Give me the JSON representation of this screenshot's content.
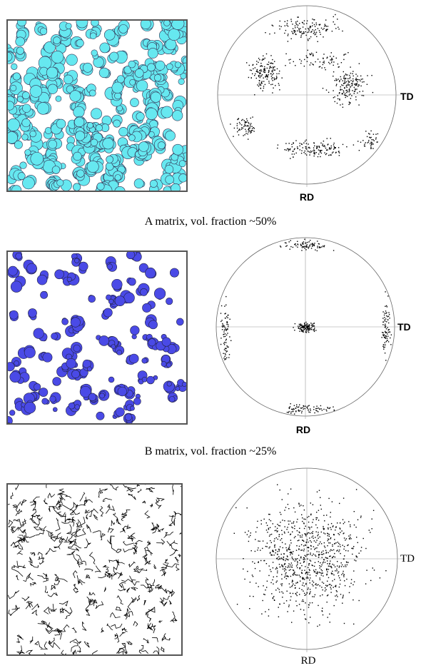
{
  "panels": [
    {
      "td_label": "TD",
      "rd_label": "RD",
      "caption": "A matrix, vol. fraction ~50%"
    },
    {
      "td_label": "TD",
      "rd_label": "RD",
      "caption": "B matrix, vol. fraction ~25%"
    },
    {
      "td_label": "TD",
      "rd_label": "RD"
    }
  ]
}
